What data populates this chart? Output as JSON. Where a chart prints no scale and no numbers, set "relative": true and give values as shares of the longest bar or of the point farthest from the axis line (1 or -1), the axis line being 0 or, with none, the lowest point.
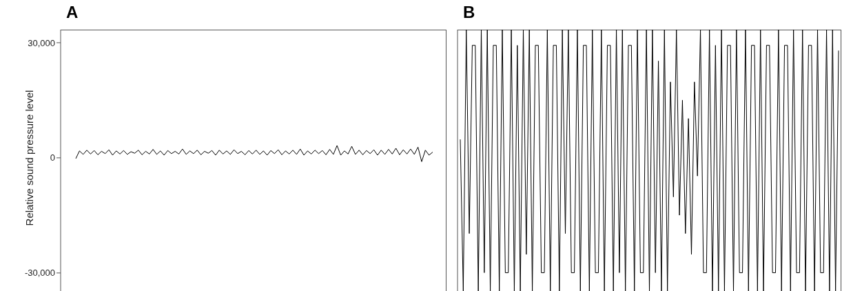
{
  "chart_data": [
    {
      "type": "line",
      "title": "A",
      "ylabel": "Relative sound pressure level",
      "ylim": [
        -34700,
        33400
      ],
      "yticks": [
        {
          "value": -30000,
          "label": "-30,000"
        },
        0,
        {
          "value": 30000,
          "label": "30,000"
        }
      ],
      "grid": false,
      "legend": false,
      "marker": "none",
      "tick_labels": "y",
      "categories": [
        null,
        null,
        null,
        null,
        null,
        null,
        null,
        null,
        null,
        null,
        null,
        null,
        null,
        null,
        null,
        null,
        null,
        null,
        null,
        null,
        null,
        null,
        null,
        null,
        null,
        null,
        null,
        null,
        null,
        null,
        null,
        null,
        null,
        null,
        null,
        null,
        null,
        null,
        null,
        null,
        null,
        null,
        null,
        null,
        null,
        null,
        null,
        null,
        null,
        null,
        null,
        null,
        null,
        null,
        null,
        null,
        null,
        null,
        null,
        null,
        null,
        null,
        null,
        null,
        null,
        null,
        null,
        null,
        null,
        null,
        null,
        null,
        null,
        null,
        null,
        null,
        null,
        null,
        null,
        null,
        null,
        null,
        null,
        null,
        null,
        null,
        null,
        null,
        null,
        null,
        null,
        null,
        null,
        null,
        null,
        null,
        null,
        null
      ],
      "series": [
        {
          "color": "#000000",
          "values": [
            -200,
            1800,
            900,
            2000,
            1000,
            1900,
            800,
            1700,
            1100,
            2100,
            700,
            1800,
            1000,
            1900,
            900,
            1600,
            1200,
            2000,
            800,
            1700,
            1000,
            2200,
            900,
            1800,
            700,
            1900,
            1100,
            1700,
            1000,
            2300,
            900,
            1800,
            1100,
            2000,
            800,
            1700,
            1200,
            1900,
            700,
            2000,
            1000,
            1800,
            900,
            2100,
            1100,
            1700,
            800,
            1900,
            1000,
            2000,
            900,
            1800,
            700,
            1900,
            1100,
            2100,
            800,
            1800,
            1000,
            2000,
            900,
            2300,
            700,
            1800,
            1000,
            2000,
            1100,
            1900,
            800,
            2200,
            900,
            3200,
            700,
            1800,
            1000,
            3000,
            900,
            2000,
            800,
            1900,
            1100,
            2100,
            700,
            2000,
            900,
            2200,
            1000,
            2500,
            800,
            2100,
            1000,
            2300,
            900,
            2800,
            -1000,
            2000,
            700,
            1500
          ]
        }
      ]
    },
    {
      "type": "line",
      "title": "B",
      "relative": true,
      "grid": false,
      "legend": false,
      "marker": "none",
      "tick_labels": false,
      "categories": [
        null,
        null,
        null,
        null,
        null,
        null,
        null,
        null,
        null,
        null,
        null,
        null,
        null,
        null,
        null,
        null,
        null,
        null,
        null,
        null,
        null,
        null,
        null,
        null,
        null,
        null,
        null,
        null,
        null,
        null,
        null,
        null,
        null,
        null,
        null,
        null,
        null,
        null,
        null,
        null,
        null,
        null,
        null,
        null,
        null,
        null,
        null,
        null,
        null,
        null,
        null,
        null,
        null,
        null,
        null,
        null,
        null,
        null,
        null,
        null,
        null,
        null,
        null,
        null,
        null,
        null,
        null,
        null,
        null,
        null,
        null,
        null,
        null,
        null,
        null,
        null,
        null,
        null,
        null,
        null,
        null,
        null,
        null,
        null,
        null,
        null,
        null,
        null,
        null,
        null,
        null,
        null,
        null,
        null,
        null,
        null,
        null,
        null,
        null,
        null,
        null,
        null,
        null,
        null,
        null,
        null,
        null,
        null,
        null,
        null,
        null,
        null,
        null,
        null,
        null,
        null,
        null,
        null,
        null,
        null,
        null,
        null,
        null,
        null,
        null,
        null,
        null
      ],
      "series": [
        {
          "color": "#000000",
          "values": [
            0.58,
            0,
            1,
            0.22,
            0.94,
            0.94,
            0,
            1,
            0.07,
            1,
            0,
            0.94,
            0.94,
            0,
            1,
            0.07,
            0.07,
            1,
            0,
            0.94,
            0,
            1,
            0.14,
            1,
            0,
            0.94,
            0.94,
            0.07,
            0.07,
            1,
            0,
            0.94,
            0.94,
            0,
            1,
            0.22,
            1,
            0.07,
            0.07,
            1,
            0,
            0.94,
            0.94,
            0,
            1,
            0.07,
            0.07,
            1,
            0,
            0.94,
            0.94,
            0,
            1,
            0.07,
            1,
            0,
            0.94,
            0.94,
            0,
            1,
            0.07,
            0.07,
            1,
            0,
            1,
            0.07,
            0.88,
            0,
            1,
            0,
            0.8,
            0.36,
            1,
            0.29,
            0.73,
            0.22,
            0.66,
            0.14,
            0.8,
            0.44,
            1,
            0.07,
            0.07,
            1,
            0,
            0.94,
            0,
            1,
            0,
            0.94,
            0.94,
            0,
            1,
            0.07,
            0.07,
            1,
            0,
            0.94,
            0.94,
            0,
            1,
            0,
            0.94,
            0.94,
            0.07,
            0.07,
            1,
            0,
            0.94,
            0.94,
            0,
            1,
            0.07,
            0.07,
            1,
            0,
            0.94,
            0.94,
            0,
            1,
            0.07,
            0.07,
            1,
            0,
            1,
            0,
            0.92
          ]
        }
      ]
    }
  ]
}
